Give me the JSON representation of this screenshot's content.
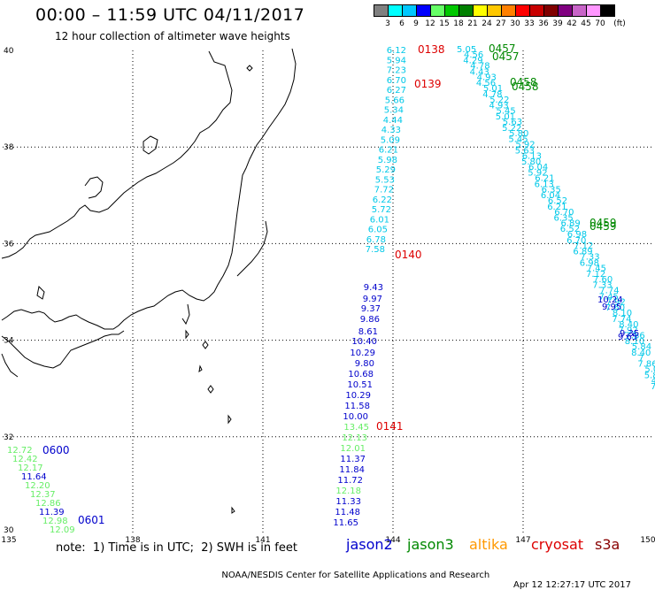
{
  "header": {
    "title": "00:00 – 11:59 UTC 04/11/2017",
    "subtitle": "12 hour collection of altimeter wave heights"
  },
  "scale": {
    "unit": "(ft)",
    "bins": [
      {
        "label": "3",
        "color": "#808080"
      },
      {
        "label": "6",
        "color": "#00ffff"
      },
      {
        "label": "9",
        "color": "#00c8ff"
      },
      {
        "label": "12",
        "color": "#0000ff"
      },
      {
        "label": "15",
        "color": "#66ff66"
      },
      {
        "label": "18",
        "color": "#00c800"
      },
      {
        "label": "21",
        "color": "#008000"
      },
      {
        "label": "24",
        "color": "#ffff00"
      },
      {
        "label": "27",
        "color": "#ffc800"
      },
      {
        "label": "30",
        "color": "#ff8000"
      },
      {
        "label": "33",
        "color": "#ff0000"
      },
      {
        "label": "36",
        "color": "#c80000"
      },
      {
        "label": "39",
        "color": "#800000"
      },
      {
        "label": "42",
        "color": "#800080"
      },
      {
        "label": "45",
        "color": "#c864c8"
      },
      {
        "label": "70",
        "color": "#ff96ff"
      },
      {
        "label": "",
        "color": "#000000"
      }
    ]
  },
  "axes": {
    "lon_labels": [
      "135",
      "138",
      "141",
      "144",
      "147",
      "150"
    ],
    "lat_labels": [
      "40",
      "38",
      "36",
      "34",
      "32",
      "30"
    ],
    "lon_range": [
      135,
      150
    ],
    "lat_range": [
      30,
      40
    ]
  },
  "passes": {
    "jason2_east": {
      "color": "#0000cc",
      "values": [
        "9.43",
        "9.97",
        "9.37",
        "9.86",
        "8.61",
        "10.40",
        "10.29",
        "9.80",
        "10.68",
        "10.51",
        "10.29",
        "11.58",
        "10.00",
        "11.37",
        "11.84",
        "11.72",
        "11.33",
        "11.48",
        "11.65"
      ]
    },
    "jason3_east": {
      "color": "#66ee66",
      "values": [
        "13.45",
        "12.13",
        "12.01",
        "12.18"
      ]
    },
    "altika_east": {
      "color": "#00c8e8",
      "values": [
        "6.12",
        "5.94",
        "7.23",
        "6.70",
        "6.27",
        "5.66",
        "5.34",
        "4.44",
        "4.33",
        "5.09",
        "6.21",
        "5.98",
        "5.29",
        "5.53",
        "7.72",
        "6.22",
        "5.72",
        "6.01",
        "6.05",
        "6.78",
        "7.58"
      ]
    },
    "diagonal": {
      "color": "#00c8e8",
      "values": [
        "5.05",
        "4.29",
        "4.43",
        "4.56",
        "4.78",
        "4.93",
        "5.01",
        "5.22",
        "5.45",
        "5.63",
        "5.80",
        "5.92",
        "6.13",
        "6.04",
        "6.21",
        "6.35",
        "6.52",
        "6.70",
        "6.89",
        "6.98",
        "7.12",
        "7.33",
        "7.45",
        "7.60",
        "7.74",
        "7.92",
        "8.10",
        "8.40",
        "7.86",
        "5.84",
        "7"
      ],
      "blue_values": [
        "10.24",
        "9.95",
        "9.35",
        "9.65"
      ]
    },
    "southwest": {
      "green_values": [
        "12.72",
        "12.42",
        "12.17",
        "12.20",
        "12.37",
        "12.86",
        "12.98",
        "12.09"
      ],
      "blue_values": [
        "11.64",
        "11.39"
      ]
    },
    "time_labels": [
      {
        "text": "0138",
        "color": "#dd0000"
      },
      {
        "text": "0139",
        "color": "#dd0000"
      },
      {
        "text": "0140",
        "color": "#dd0000"
      },
      {
        "text": "0141",
        "color": "#dd0000"
      },
      {
        "text": "0457",
        "color": "#008800"
      },
      {
        "text": "0457",
        "color": "#008800"
      },
      {
        "text": "0458",
        "color": "#008800"
      },
      {
        "text": "0458",
        "color": "#008800"
      },
      {
        "text": "0459",
        "color": "#008800"
      },
      {
        "text": "0459",
        "color": "#008800"
      },
      {
        "text": "0600",
        "color": "#0000cc"
      },
      {
        "text": "0601",
        "color": "#0000cc"
      }
    ]
  },
  "footer_note": "note:  1) Time is in UTC;  2) SWH is in feet",
  "legend_sats": [
    {
      "label": "jason2",
      "color": "#0000cc"
    },
    {
      "label": "jason3",
      "color": "#008800"
    },
    {
      "label": "altika",
      "color": "#ff9900"
    },
    {
      "label": "cryosat",
      "color": "#dd0000"
    },
    {
      "label": "s3a",
      "color": "#880000"
    }
  ],
  "footer": {
    "credit": "NOAA/NESDIS Center for Satellite Applications and Research",
    "timestamp": "Apr 12 12:27:17 UTC 2017"
  }
}
